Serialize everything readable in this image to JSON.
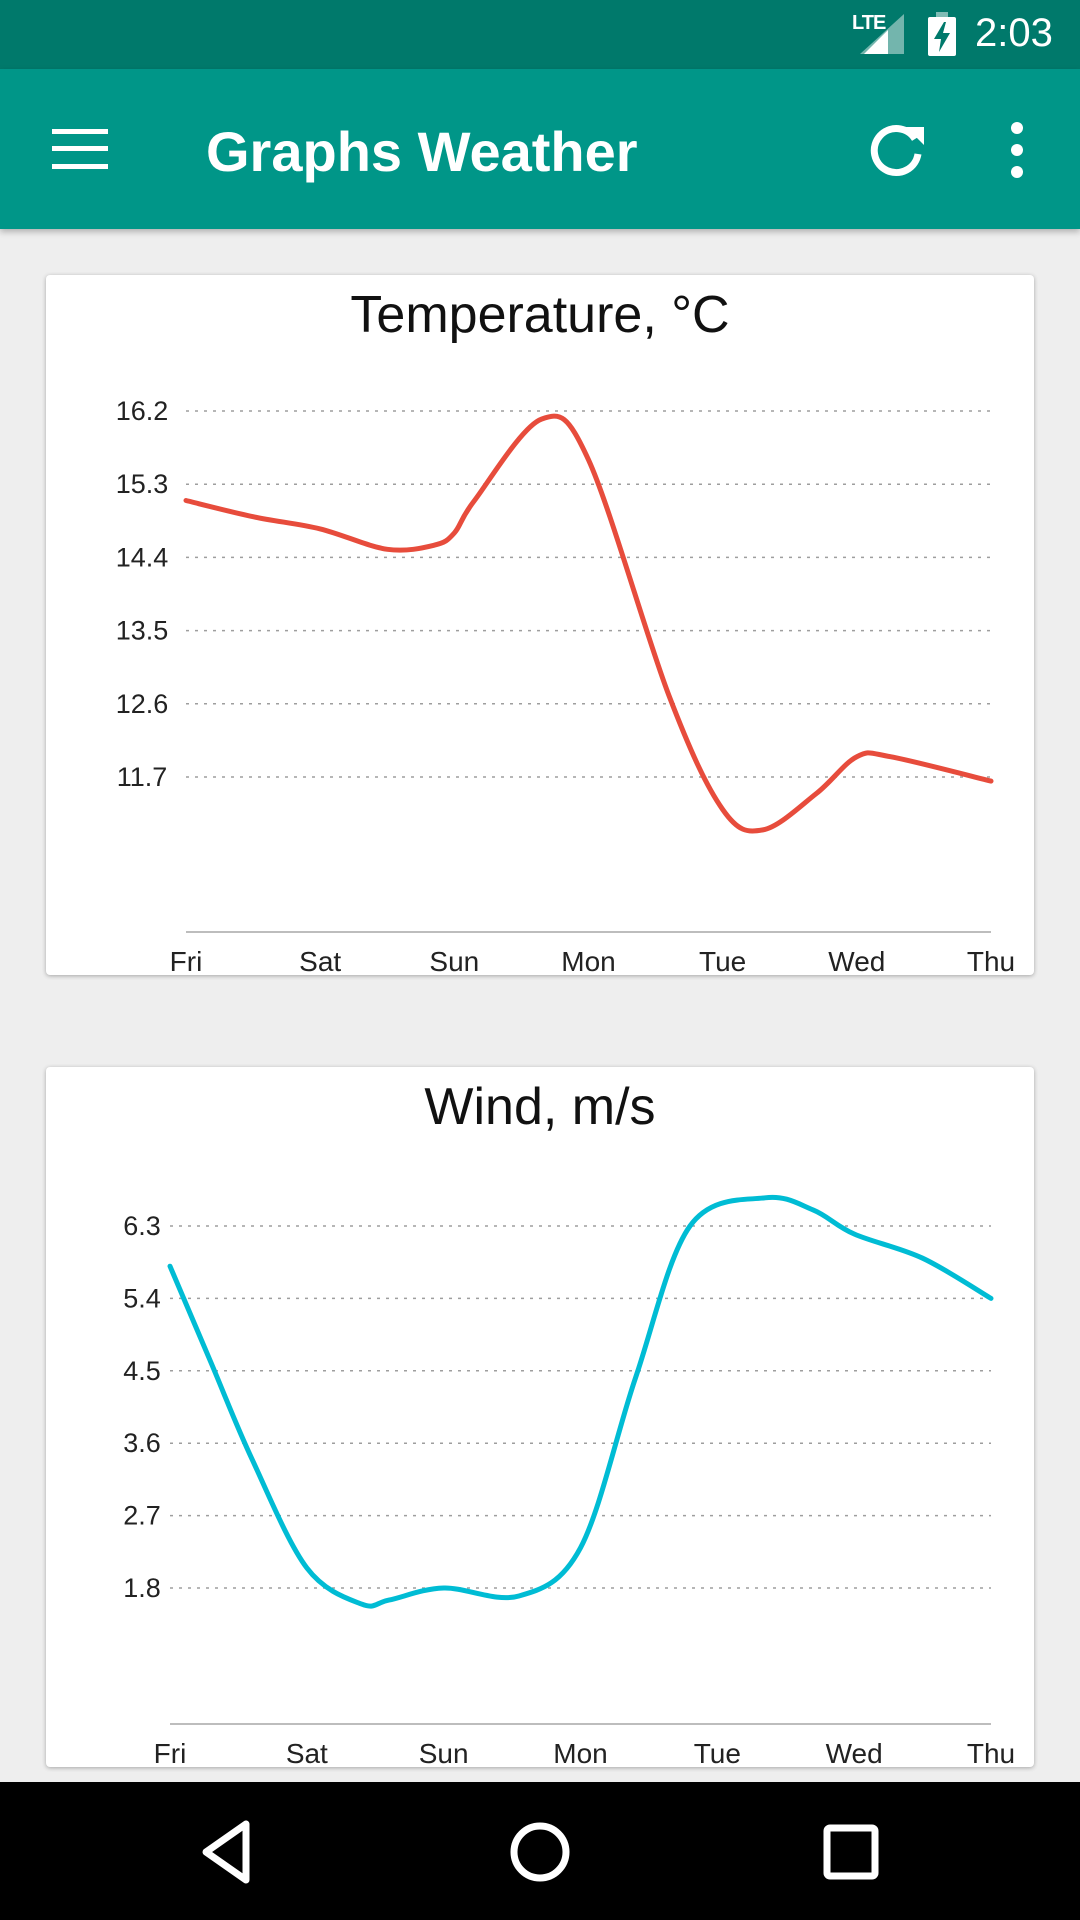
{
  "status_bar": {
    "network": "LTE",
    "time": "2:03",
    "icons": [
      "signal-icon",
      "battery-charging-icon"
    ]
  },
  "app_bar": {
    "title": "Graphs Weather",
    "color": "#009688",
    "icons": [
      "menu-icon",
      "refresh-icon",
      "more-vert-icon"
    ]
  },
  "chart_data": [
    {
      "type": "line",
      "title": "Temperature, °C",
      "categories": [
        "Fri",
        "Sat",
        "Sun",
        "Mon",
        "Tue",
        "Wed",
        "Thu"
      ],
      "x": [
        0,
        0.5,
        1,
        1.5,
        1.85,
        2,
        2.15,
        2.65,
        3,
        3.6,
        4,
        4.3,
        4.7,
        5,
        5.25,
        6
      ],
      "values": [
        15.1,
        14.9,
        14.75,
        14.5,
        14.55,
        14.7,
        15.1,
        16.1,
        15.6,
        12.7,
        11.3,
        11.05,
        11.5,
        11.95,
        11.95,
        11.65
      ],
      "yticks": [
        11.7,
        12.6,
        13.5,
        14.4,
        15.3,
        16.2
      ],
      "ylim": [
        10.8,
        16.2
      ],
      "line_color": "#e74c3c",
      "grid": true
    },
    {
      "type": "line",
      "title": "Wind, m/s",
      "categories": [
        "Fri",
        "Sat",
        "Sun",
        "Mon",
        "Tue",
        "Wed",
        "Thu"
      ],
      "x": [
        0,
        0.3,
        0.6,
        1,
        1.4,
        1.6,
        2,
        2.55,
        3,
        3.4,
        3.8,
        4.35,
        4.7,
        5,
        5.5,
        6
      ],
      "values": [
        5.8,
        4.6,
        3.4,
        2.05,
        1.6,
        1.65,
        1.8,
        1.7,
        2.3,
        4.4,
        6.3,
        6.65,
        6.5,
        6.2,
        5.9,
        5.4
      ],
      "yticks": [
        1.8,
        2.7,
        3.6,
        4.5,
        5.4,
        6.3
      ],
      "ylim": [
        0.3,
        6.3
      ],
      "line_color": "#00bcd4",
      "grid": true
    }
  ],
  "nav_bar": {
    "icons": [
      "back-icon",
      "home-icon",
      "recent-apps-icon"
    ]
  }
}
